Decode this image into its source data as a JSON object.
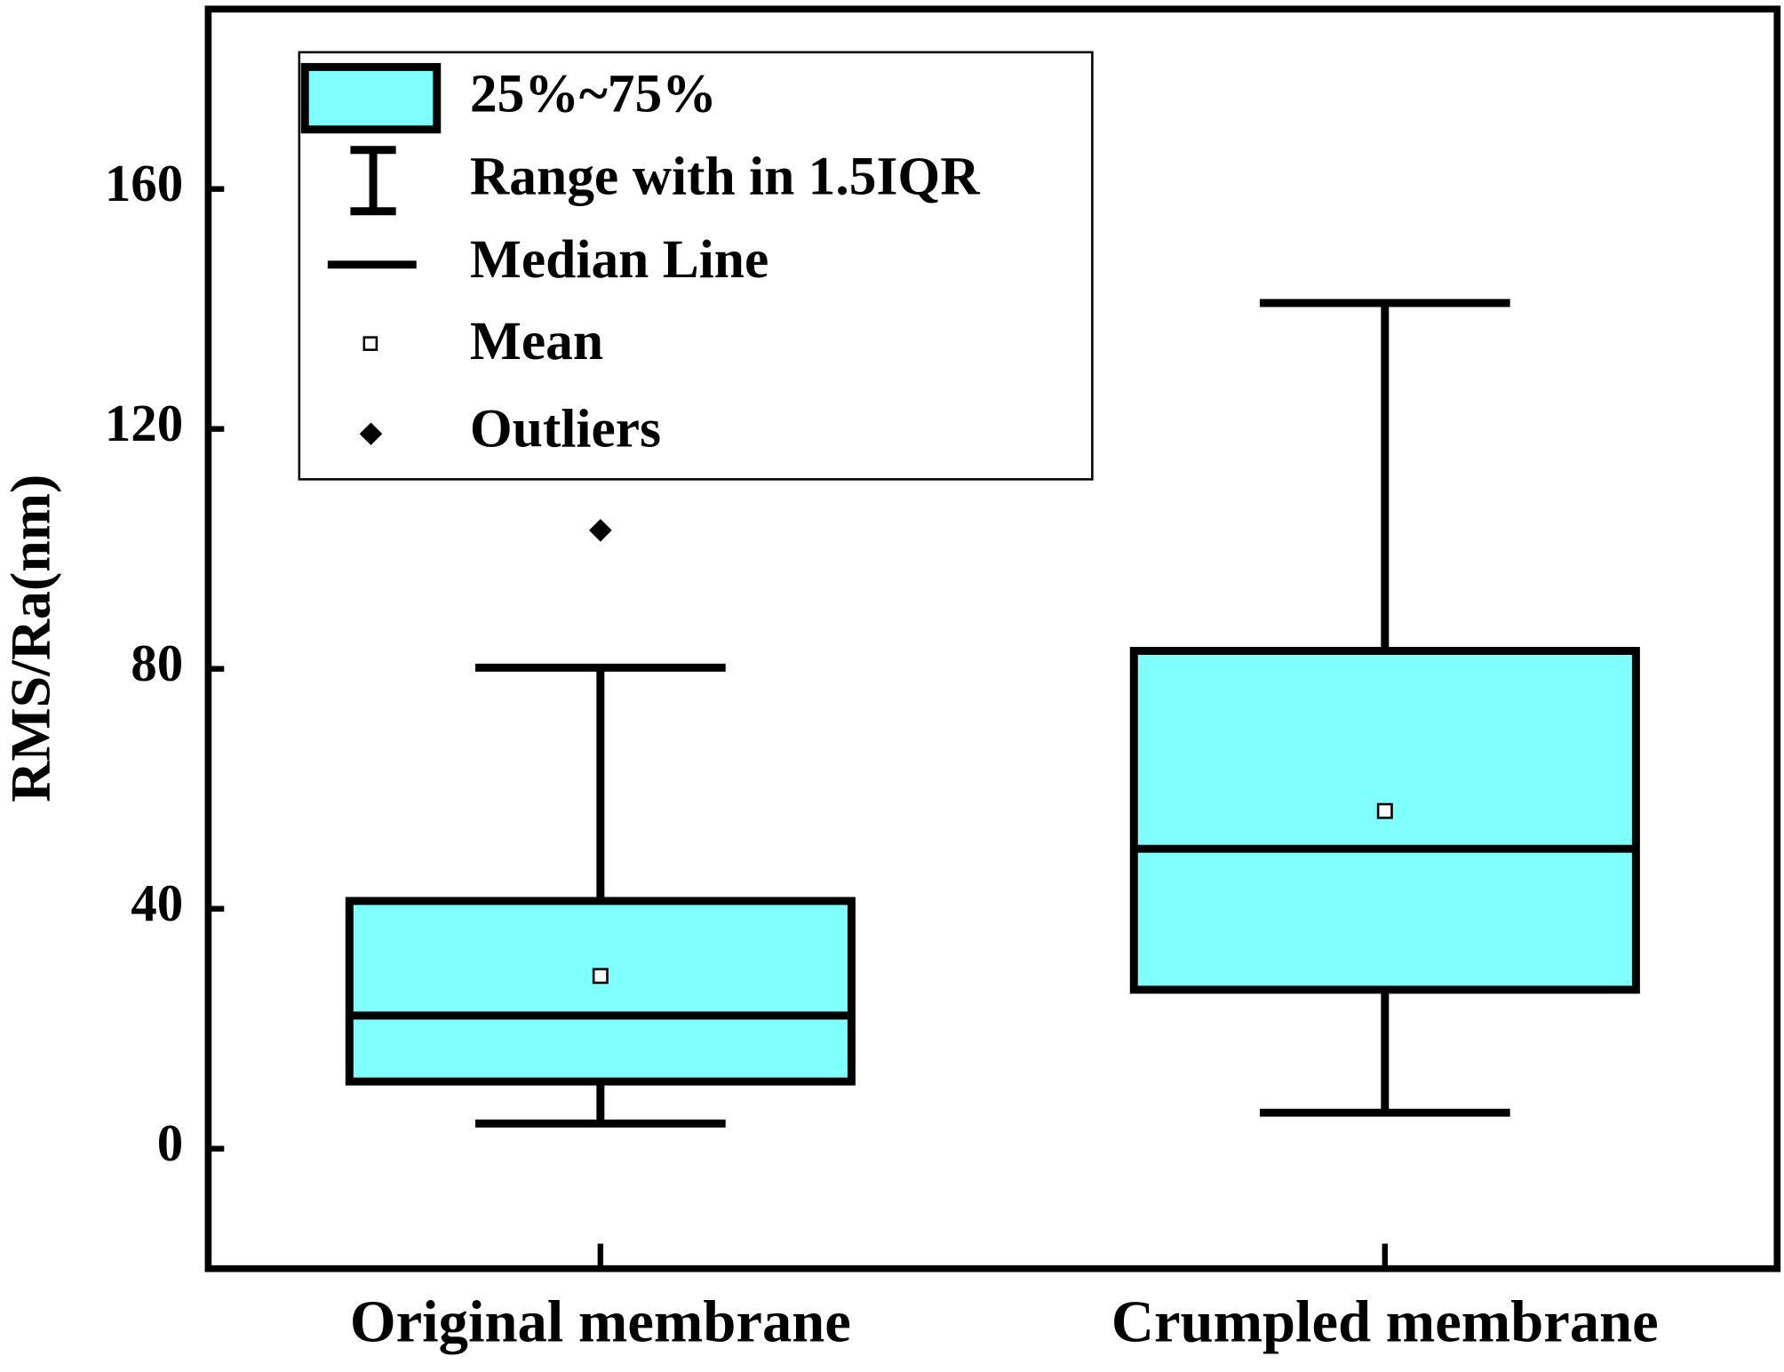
{
  "chart_data": {
    "type": "box",
    "ylabel": "RMS/Ra(nm)",
    "categories": [
      "Original membrane",
      "Crumpled membrane"
    ],
    "color": "#80ffff",
    "boxes": [
      {
        "whislo": 4.2,
        "q1": 11.2,
        "med": 22.2,
        "q3": 41.3,
        "whishi": 80.2,
        "mean": 28.8,
        "fliers": [
          103.1
        ]
      },
      {
        "whislo": 6,
        "q1": 26.5,
        "med": 50,
        "q3": 83,
        "whishi": 141,
        "mean": 56.3,
        "fliers": []
      }
    ],
    "ylim": [
      -20,
      190
    ],
    "yticks": [
      0,
      40,
      80,
      120,
      160
    ],
    "legend": [
      "25%~75%",
      "Range with in 1.5IQR",
      "Median Line",
      "Mean",
      "Outliers"
    ]
  }
}
